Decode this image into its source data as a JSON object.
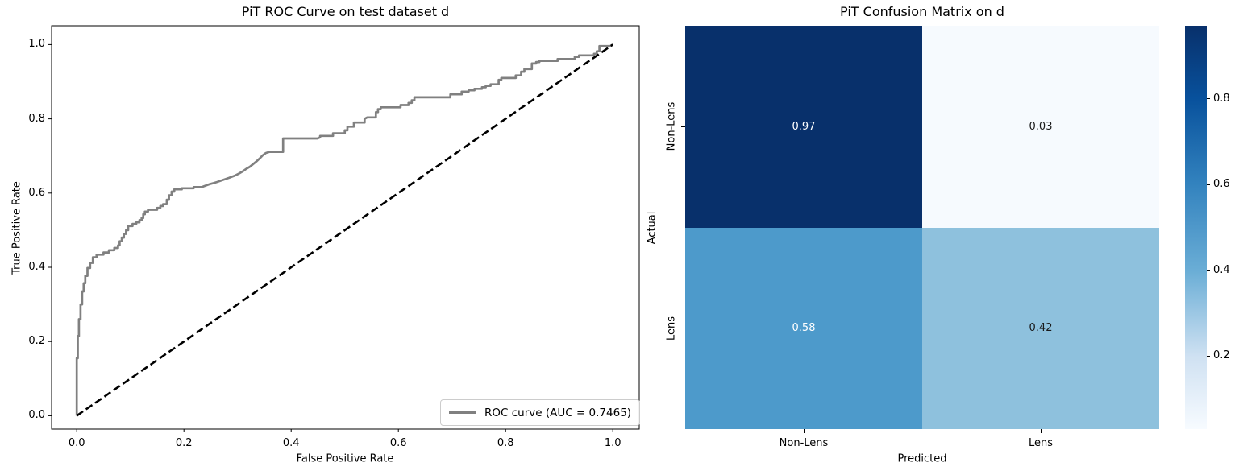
{
  "figure": {
    "background": "#ffffff"
  },
  "chart_data": [
    {
      "type": "line",
      "title": "PiT ROC Curve on test dataset d",
      "xlabel": "False Positive Rate",
      "ylabel": "True Positive Rate",
      "xticks": [
        0.0,
        0.2,
        0.4,
        0.6,
        0.8,
        1.0
      ],
      "yticks": [
        0.0,
        0.2,
        0.4,
        0.6,
        0.8,
        1.0
      ],
      "xlim": [
        -0.05,
        1.05
      ],
      "ylim": [
        -0.05,
        1.05
      ],
      "grid": false,
      "legend": {
        "position": "lower right",
        "entries": [
          {
            "label": "ROC curve (AUC = 0.7465)",
            "color": "#808080",
            "style": "solid"
          }
        ]
      },
      "auc": 0.7465,
      "series": [
        {
          "name": "ROC curve",
          "color": "#808080",
          "style": "solid",
          "linewidth": 2.7,
          "points": [
            [
              0,
              0
            ],
            [
              0,
              0.155
            ],
            [
              0.002,
              0.155
            ],
            [
              0.002,
              0.215
            ],
            [
              0.004,
              0.215
            ],
            [
              0.004,
              0.26
            ],
            [
              0.007,
              0.26
            ],
            [
              0.007,
              0.3
            ],
            [
              0.01,
              0.3
            ],
            [
              0.01,
              0.335
            ],
            [
              0.013,
              0.335
            ],
            [
              0.013,
              0.357
            ],
            [
              0.016,
              0.357
            ],
            [
              0.016,
              0.377
            ],
            [
              0.02,
              0.377
            ],
            [
              0.02,
              0.398
            ],
            [
              0.025,
              0.398
            ],
            [
              0.025,
              0.412
            ],
            [
              0.03,
              0.412
            ],
            [
              0.03,
              0.427
            ],
            [
              0.037,
              0.427
            ],
            [
              0.037,
              0.434
            ],
            [
              0.05,
              0.434
            ],
            [
              0.05,
              0.44
            ],
            [
              0.06,
              0.44
            ],
            [
              0.06,
              0.446
            ],
            [
              0.07,
              0.446
            ],
            [
              0.07,
              0.452
            ],
            [
              0.077,
              0.452
            ],
            [
              0.077,
              0.459
            ],
            [
              0.08,
              0.459
            ],
            [
              0.08,
              0.47
            ],
            [
              0.084,
              0.47
            ],
            [
              0.084,
              0.48
            ],
            [
              0.088,
              0.48
            ],
            [
              0.088,
              0.49
            ],
            [
              0.092,
              0.49
            ],
            [
              0.092,
              0.5
            ],
            [
              0.096,
              0.5
            ],
            [
              0.096,
              0.511
            ],
            [
              0.104,
              0.511
            ],
            [
              0.104,
              0.517
            ],
            [
              0.111,
              0.517
            ],
            [
              0.111,
              0.521
            ],
            [
              0.117,
              0.521
            ],
            [
              0.117,
              0.527
            ],
            [
              0.121,
              0.527
            ],
            [
              0.121,
              0.533
            ],
            [
              0.124,
              0.533
            ],
            [
              0.124,
              0.543
            ],
            [
              0.127,
              0.543
            ],
            [
              0.127,
              0.55
            ],
            [
              0.133,
              0.55
            ],
            [
              0.133,
              0.555
            ],
            [
              0.15,
              0.555
            ],
            [
              0.15,
              0.56
            ],
            [
              0.156,
              0.56
            ],
            [
              0.156,
              0.565
            ],
            [
              0.161,
              0.565
            ],
            [
              0.161,
              0.57
            ],
            [
              0.168,
              0.57
            ],
            [
              0.168,
              0.582
            ],
            [
              0.172,
              0.582
            ],
            [
              0.172,
              0.594
            ],
            [
              0.177,
              0.594
            ],
            [
              0.177,
              0.604
            ],
            [
              0.182,
              0.604
            ],
            [
              0.182,
              0.61
            ],
            [
              0.196,
              0.61
            ],
            [
              0.196,
              0.613
            ],
            [
              0.218,
              0.613
            ],
            [
              0.218,
              0.616
            ],
            [
              0.233,
              0.616
            ],
            [
              0.24,
              0.62
            ],
            [
              0.248,
              0.624
            ],
            [
              0.255,
              0.627
            ],
            [
              0.262,
              0.63
            ],
            [
              0.27,
              0.634
            ],
            [
              0.284,
              0.641
            ],
            [
              0.295,
              0.647
            ],
            [
              0.302,
              0.652
            ],
            [
              0.309,
              0.658
            ],
            [
              0.316,
              0.665
            ],
            [
              0.323,
              0.671
            ],
            [
              0.329,
              0.678
            ],
            [
              0.335,
              0.685
            ],
            [
              0.341,
              0.693
            ],
            [
              0.347,
              0.702
            ],
            [
              0.353,
              0.708
            ],
            [
              0.36,
              0.711
            ],
            [
              0.385,
              0.711
            ],
            [
              0.385,
              0.747
            ],
            [
              0.449,
              0.747
            ],
            [
              0.454,
              0.75
            ],
            [
              0.454,
              0.754
            ],
            [
              0.478,
              0.754
            ],
            [
              0.478,
              0.761
            ],
            [
              0.5,
              0.761
            ],
            [
              0.5,
              0.769
            ],
            [
              0.505,
              0.769
            ],
            [
              0.505,
              0.779
            ],
            [
              0.517,
              0.779
            ],
            [
              0.517,
              0.79
            ],
            [
              0.537,
              0.79
            ],
            [
              0.537,
              0.8
            ],
            [
              0.542,
              0.804
            ],
            [
              0.558,
              0.804
            ],
            [
              0.558,
              0.818
            ],
            [
              0.562,
              0.818
            ],
            [
              0.562,
              0.826
            ],
            [
              0.567,
              0.826
            ],
            [
              0.567,
              0.831
            ],
            [
              0.604,
              0.831
            ],
            [
              0.604,
              0.837
            ],
            [
              0.619,
              0.837
            ],
            [
              0.619,
              0.843
            ],
            [
              0.625,
              0.843
            ],
            [
              0.625,
              0.85
            ],
            [
              0.63,
              0.85
            ],
            [
              0.63,
              0.858
            ],
            [
              0.697,
              0.858
            ],
            [
              0.697,
              0.866
            ],
            [
              0.718,
              0.866
            ],
            [
              0.718,
              0.873
            ],
            [
              0.731,
              0.873
            ],
            [
              0.731,
              0.877
            ],
            [
              0.742,
              0.877
            ],
            [
              0.742,
              0.881
            ],
            [
              0.756,
              0.881
            ],
            [
              0.756,
              0.885
            ],
            [
              0.763,
              0.885
            ],
            [
              0.763,
              0.889
            ],
            [
              0.772,
              0.889
            ],
            [
              0.772,
              0.893
            ],
            [
              0.787,
              0.893
            ],
            [
              0.787,
              0.905
            ],
            [
              0.792,
              0.905
            ],
            [
              0.792,
              0.91
            ],
            [
              0.819,
              0.91
            ],
            [
              0.819,
              0.917
            ],
            [
              0.829,
              0.917
            ],
            [
              0.829,
              0.927
            ],
            [
              0.835,
              0.927
            ],
            [
              0.835,
              0.934
            ],
            [
              0.849,
              0.934
            ],
            [
              0.849,
              0.949
            ],
            [
              0.857,
              0.949
            ],
            [
              0.857,
              0.953
            ],
            [
              0.863,
              0.953
            ],
            [
              0.863,
              0.956
            ],
            [
              0.897,
              0.956
            ],
            [
              0.897,
              0.961
            ],
            [
              0.929,
              0.961
            ],
            [
              0.929,
              0.967
            ],
            [
              0.937,
              0.967
            ],
            [
              0.937,
              0.971
            ],
            [
              0.965,
              0.971
            ],
            [
              0.965,
              0.975
            ],
            [
              0.97,
              0.975
            ],
            [
              0.97,
              0.982
            ],
            [
              0.975,
              0.982
            ],
            [
              0.975,
              0.996
            ],
            [
              0.995,
              0.996
            ],
            [
              1,
              1
            ]
          ]
        },
        {
          "name": "chance diagonal",
          "color": "#000000",
          "style": "dashed",
          "linewidth": 2.6,
          "points": [
            [
              0,
              0
            ],
            [
              1,
              1
            ]
          ]
        }
      ]
    },
    {
      "type": "heatmap",
      "title": "PiT Confusion Matrix on d",
      "xlabel": "Predicted",
      "ylabel": "Actual",
      "x_categories": [
        "Non-Lens",
        "Lens"
      ],
      "y_categories": [
        "Non-Lens",
        "Lens"
      ],
      "values": [
        [
          0.97,
          0.03
        ],
        [
          0.58,
          0.42
        ]
      ],
      "cell_colors": [
        [
          "#08306b",
          "#f6fafe"
        ],
        [
          "#4d9acb",
          "#8ec1dd"
        ]
      ],
      "cell_text_colors": [
        [
          "#ffffff",
          "#1a1a1a"
        ],
        [
          "#ffffff",
          "#1a1a1a"
        ]
      ],
      "colormap": "Blues",
      "colorbar": {
        "vmin": 0.03,
        "vmax": 0.97,
        "ticks": [
          0.8,
          0.6,
          0.4,
          0.2
        ],
        "gradient_stops": [
          {
            "pos": 0,
            "color": "#08306b"
          },
          {
            "pos": 18,
            "color": "#08519c"
          },
          {
            "pos": 39,
            "color": "#3282be"
          },
          {
            "pos": 61,
            "color": "#6baed6"
          },
          {
            "pos": 82,
            "color": "#cfe1f2"
          },
          {
            "pos": 100,
            "color": "#f7fbff"
          }
        ]
      }
    }
  ]
}
